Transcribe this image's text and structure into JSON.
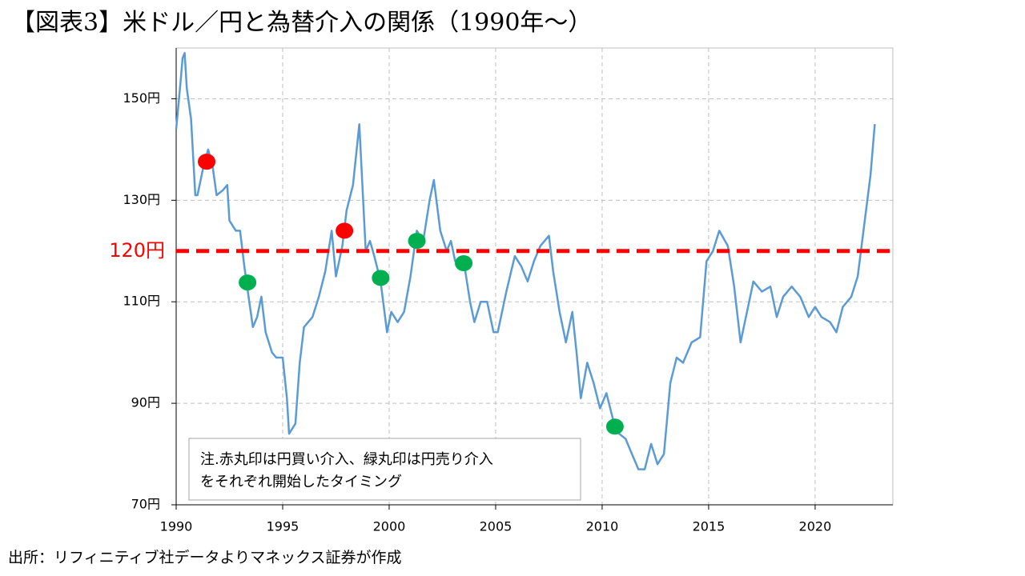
{
  "chart_data": {
    "type": "line",
    "title": "【図表3】米ドル／円と為替介入の関係（1990年〜）",
    "source": "出所：リフィニティブ社データよりマネックス証券が作成",
    "note": [
      "注.赤丸印は円買い介入、緑丸印は円売り介入",
      "をそれぞれ開始したタイミング"
    ],
    "xlim": [
      1990,
      2023.65
    ],
    "xticks": [
      1990,
      1995,
      2000,
      2005,
      2010,
      2015,
      2020
    ],
    "ylim": [
      70,
      160
    ],
    "yticks": [
      {
        "value": 70,
        "label": "70円"
      },
      {
        "value": 90,
        "label": "90円"
      },
      {
        "value": 110,
        "label": "110円"
      },
      {
        "value": 130,
        "label": "130円"
      },
      {
        "value": 150,
        "label": "150円"
      }
    ],
    "grid": true,
    "reference_line": {
      "value": 120,
      "label": "120円",
      "color": "#ff0000"
    },
    "line": {
      "color": "#5b9bd5",
      "x": [
        1990.0,
        1990.2,
        1990.3,
        1990.4,
        1990.5,
        1990.7,
        1990.9,
        1991.0,
        1991.2,
        1991.3,
        1991.5,
        1991.7,
        1991.9,
        1992.2,
        1992.4,
        1992.5,
        1992.8,
        1993.0,
        1993.2,
        1993.4,
        1993.6,
        1993.8,
        1994.0,
        1994.2,
        1994.5,
        1994.7,
        1995.0,
        1995.2,
        1995.3,
        1995.6,
        1995.8,
        1996.0,
        1996.4,
        1996.7,
        1997.0,
        1997.3,
        1997.5,
        1997.8,
        1998.0,
        1998.3,
        1998.6,
        1998.9,
        1999.1,
        1999.3,
        1999.6,
        1999.9,
        2000.1,
        2000.4,
        2000.7,
        2001.0,
        2001.3,
        2001.6,
        2001.9,
        2002.1,
        2002.4,
        2002.7,
        2002.9,
        2003.1,
        2003.5,
        2003.8,
        2004.0,
        2004.3,
        2004.6,
        2004.9,
        2005.1,
        2005.5,
        2005.9,
        2006.2,
        2006.5,
        2006.8,
        2007.1,
        2007.5,
        2007.7,
        2008.0,
        2008.3,
        2008.6,
        2008.8,
        2009.0,
        2009.3,
        2009.6,
        2009.9,
        2010.2,
        2010.5,
        2010.8,
        2011.1,
        2011.4,
        2011.7,
        2012.0,
        2012.3,
        2012.6,
        2012.9,
        2013.2,
        2013.5,
        2013.8,
        2014.2,
        2014.6,
        2014.9,
        2015.2,
        2015.5,
        2015.9,
        2016.2,
        2016.5,
        2016.9,
        2017.1,
        2017.5,
        2017.9,
        2018.2,
        2018.5,
        2018.9,
        2019.3,
        2019.7,
        2020.0,
        2020.3,
        2020.7,
        2021.0,
        2021.3,
        2021.7,
        2022.0,
        2022.3,
        2022.6,
        2022.8
      ],
      "values": [
        144,
        153,
        158,
        159,
        152,
        146,
        131,
        131,
        135,
        137,
        140,
        137,
        131,
        132,
        133,
        126,
        124,
        124,
        117,
        111,
        105,
        107,
        111,
        104,
        100,
        99,
        99,
        91,
        84,
        86,
        98,
        105,
        107,
        111,
        116,
        124,
        115,
        121,
        128,
        133,
        145,
        120,
        122,
        119,
        114,
        104,
        108,
        106,
        108,
        115,
        124,
        122,
        130,
        134,
        124,
        120,
        122,
        118,
        118,
        110,
        106,
        110,
        110,
        104,
        104,
        112,
        119,
        117,
        114,
        118,
        121,
        123,
        116,
        108,
        102,
        108,
        100,
        91,
        98,
        94,
        89,
        92,
        87,
        84,
        83,
        80,
        77,
        77,
        82,
        78,
        80,
        94,
        99,
        98,
        102,
        103,
        118,
        120,
        124,
        121,
        113,
        102,
        110,
        114,
        112,
        113,
        107,
        111,
        113,
        111,
        107,
        109,
        107,
        106,
        104,
        109,
        111,
        115,
        125,
        135,
        145
      ]
    },
    "markers": [
      {
        "color": "#ff0000",
        "x": [
          1991.43,
          1997.9
        ],
        "values": [
          137.6,
          124
        ]
      },
      {
        "color": "#00b050",
        "x": [
          1993.35,
          1999.6,
          2001.3,
          2003.5,
          2010.6
        ],
        "values": [
          113.8,
          114.7,
          122,
          117.6,
          85.4
        ]
      }
    ]
  }
}
